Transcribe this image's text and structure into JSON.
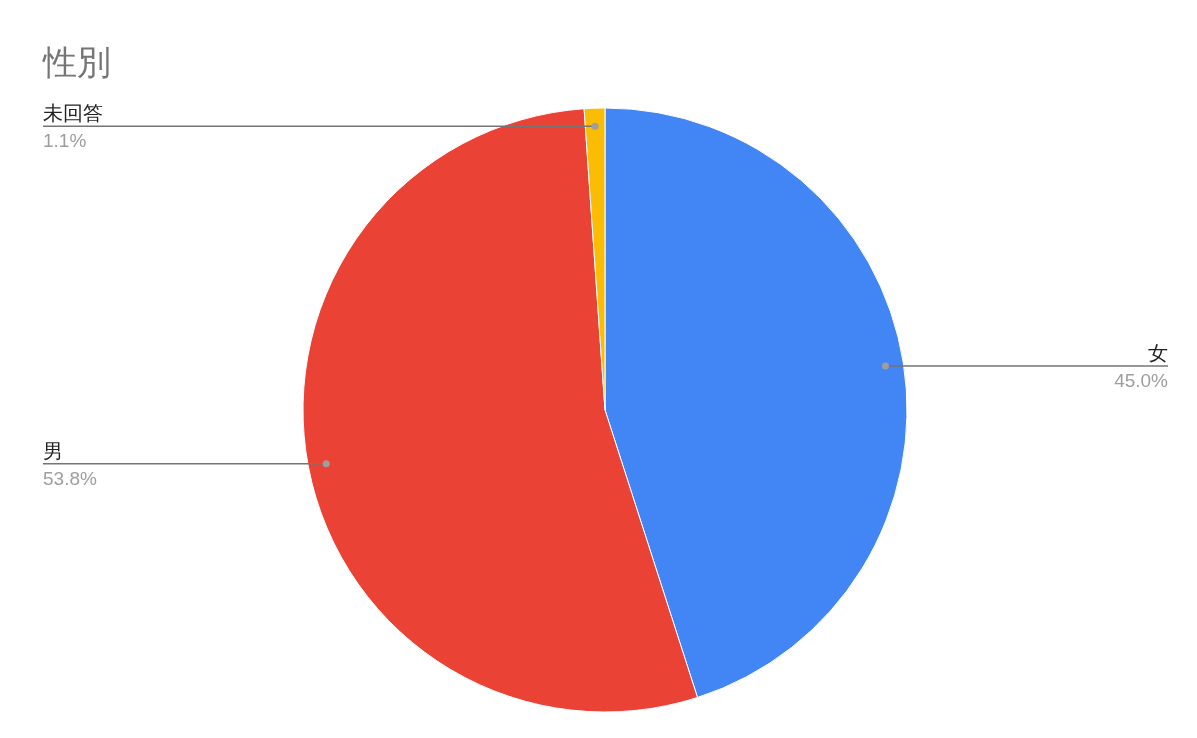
{
  "chart_data": {
    "type": "pie",
    "title": "性別",
    "categories": [
      "女",
      "男",
      "未回答"
    ],
    "values": [
      45.0,
      53.8,
      1.1
    ],
    "value_labels": [
      "45.0%",
      "53.8%",
      "1.1%"
    ],
    "colors": [
      "#4285f4",
      "#ea4335",
      "#fbbc04"
    ]
  }
}
